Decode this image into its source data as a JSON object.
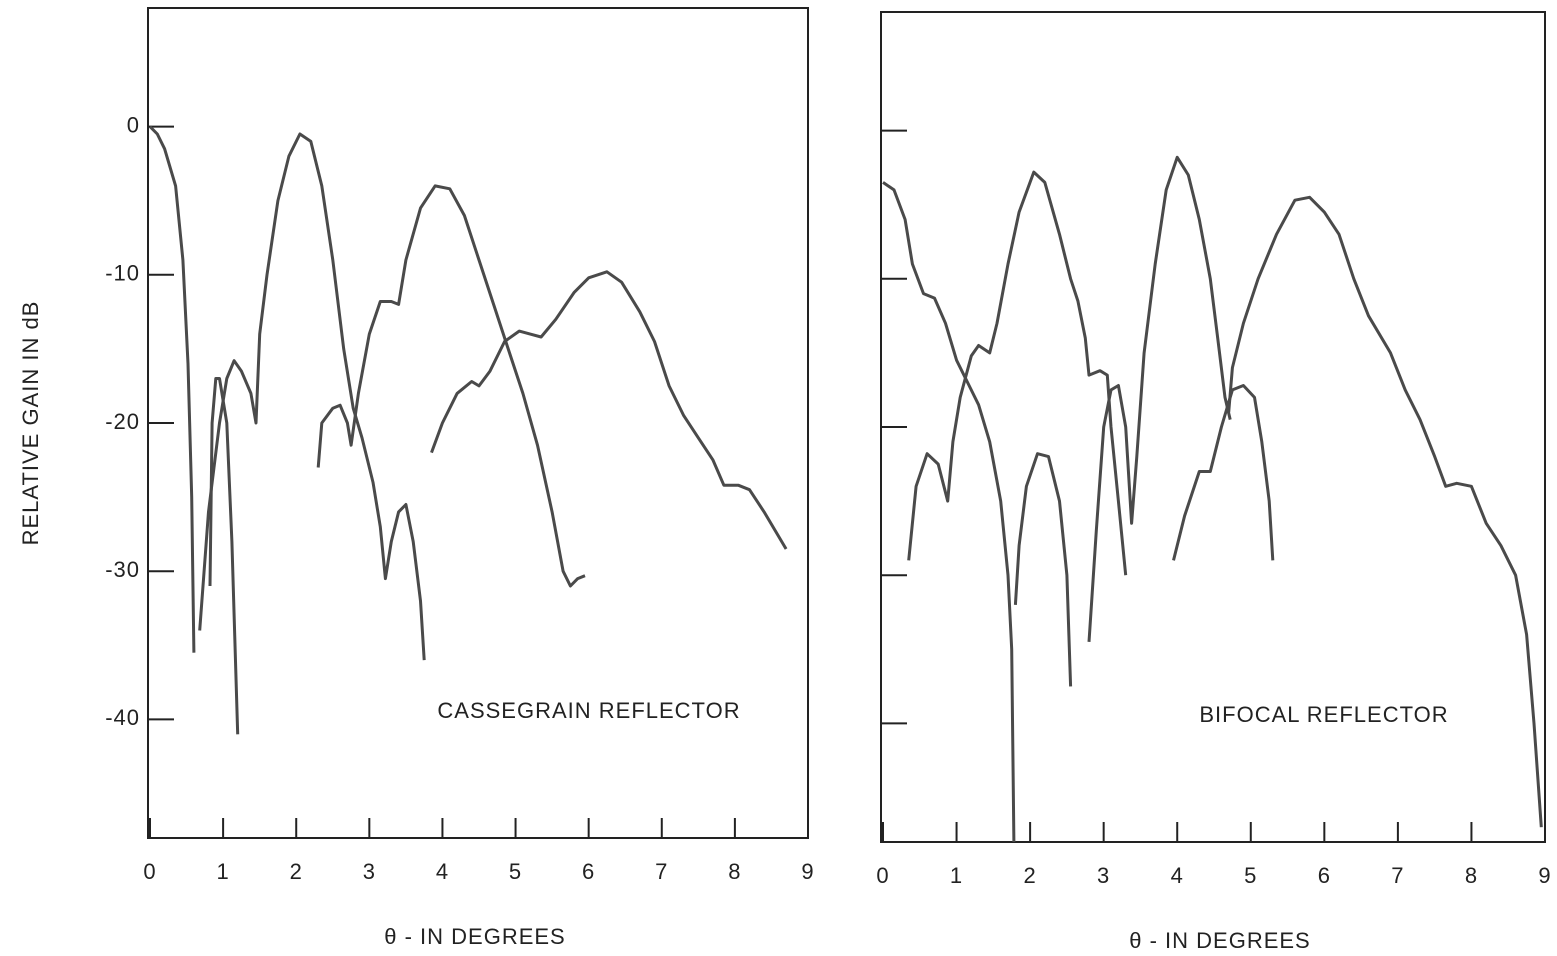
{
  "chart_data": [
    {
      "type": "line",
      "ylabel": "RELATIVE GAIN IN dB",
      "xlabel": "θ - IN DEGREES",
      "annotation": "CASSEGRAIN REFLECTOR",
      "color": "#4a4a4a",
      "xlim": [
        0,
        9
      ],
      "ylim": [
        -48,
        8
      ],
      "xticks": [
        0,
        1,
        2,
        3,
        4,
        5,
        6,
        7,
        8,
        9
      ],
      "yticks": [
        0,
        -10,
        -20,
        -30,
        -40
      ],
      "ytick_labels": true,
      "series": [
        {
          "x": [
            0,
            0.1,
            0.2,
            0.35,
            0.45,
            0.52,
            0.57,
            0.6
          ],
          "values": [
            0,
            -0.5,
            -1.5,
            -4,
            -9,
            -16,
            -25,
            -35.5
          ]
        },
        {
          "x": [
            0.82,
            0.85,
            0.9,
            0.95,
            1.05,
            1.12,
            1.2
          ],
          "values": [
            -31,
            -20,
            -17,
            -17,
            -20,
            -28,
            -41
          ]
        },
        {
          "x": [
            0.68,
            0.8,
            0.95,
            1.05,
            1.15,
            1.25,
            1.38,
            1.45,
            1.5,
            1.6,
            1.75,
            1.9,
            2.05,
            2.2,
            2.35,
            2.5,
            2.65,
            2.78,
            2.9,
            3.05,
            3.15,
            3.22,
            3.3,
            3.4,
            3.5,
            3.6,
            3.7,
            3.75
          ],
          "values": [
            -34,
            -26,
            -20,
            -17,
            -15.8,
            -16.5,
            -18,
            -20,
            -14,
            -10,
            -5,
            -2,
            -0.5,
            -1,
            -4,
            -9,
            -15,
            -19,
            -21,
            -24,
            -27,
            -30.5,
            -28,
            -26,
            -25.5,
            -28,
            -32,
            -36
          ]
        },
        {
          "x": [
            2.3,
            2.35,
            2.5,
            2.6,
            2.7,
            2.75,
            2.85,
            3,
            3.15,
            3.3,
            3.4,
            3.5,
            3.7,
            3.9,
            4.1,
            4.3,
            4.5,
            4.7,
            4.9,
            5.1,
            5.3,
            5.5,
            5.65,
            5.75,
            5.85,
            5.95
          ],
          "values": [
            -23,
            -20,
            -19,
            -18.8,
            -20,
            -21.5,
            -18,
            -14,
            -11.8,
            -11.8,
            -12,
            -9,
            -5.5,
            -4,
            -4.2,
            -6,
            -9,
            -12,
            -15,
            -18,
            -21.5,
            -26,
            -30,
            -31,
            -30.5,
            -30.3
          ]
        },
        {
          "x": [
            3.85,
            4,
            4.2,
            4.4,
            4.5,
            4.65,
            4.85,
            5.05,
            5.2,
            5.35,
            5.55,
            5.8,
            6,
            6.25,
            6.45,
            6.7,
            6.9,
            7.1,
            7.3,
            7.5,
            7.7,
            7.85,
            8.05,
            8.2,
            8.4,
            8.7
          ],
          "values": [
            -22,
            -20,
            -18,
            -17.2,
            -17.5,
            -16.5,
            -14.5,
            -13.8,
            -14,
            -14.2,
            -13,
            -11.2,
            -10.2,
            -9.8,
            -10.5,
            -12.5,
            -14.5,
            -17.5,
            -19.5,
            -21,
            -22.5,
            -24.2,
            -24.2,
            -24.5,
            -26,
            -28.5
          ]
        }
      ]
    },
    {
      "type": "line",
      "xlabel": "θ - IN DEGREES",
      "annotation": "BIFOCAL REFLECTOR",
      "color": "#4a4a4a",
      "xlim": [
        0,
        9
      ],
      "ylim": [
        -48,
        8
      ],
      "xticks": [
        0,
        1,
        2,
        3,
        4,
        5,
        6,
        7,
        8,
        9
      ],
      "yticks": [
        0,
        -10,
        -20,
        -30,
        -40
      ],
      "ytick_labels": false,
      "series": [
        {
          "x": [
            0,
            0.15,
            0.3,
            0.4,
            0.55,
            0.7,
            0.85,
            1,
            1.15,
            1.3,
            1.45,
            1.6,
            1.7,
            1.75,
            1.78
          ],
          "values": [
            -3.5,
            -4,
            -6,
            -9,
            -11,
            -11.3,
            -13,
            -15.5,
            -17,
            -18.5,
            -21,
            -25,
            -30,
            -35,
            -48
          ]
        },
        {
          "x": [
            0.35,
            0.45,
            0.6,
            0.75,
            0.88,
            0.95,
            1.05,
            1.2,
            1.3,
            1.45,
            1.55,
            1.7,
            1.85,
            2.05,
            2.2,
            2.4,
            2.55,
            2.65,
            2.75,
            2.8,
            2.95,
            3.05,
            3.1,
            3.2,
            3.3
          ],
          "values": [
            -29,
            -24,
            -21.8,
            -22.5,
            -25,
            -21,
            -18,
            -15.2,
            -14.5,
            -15,
            -13,
            -9,
            -5.5,
            -2.8,
            -3.5,
            -7,
            -10,
            -11.5,
            -14,
            -16.5,
            -16.2,
            -16.5,
            -20,
            -25,
            -30
          ]
        },
        {
          "x": [
            1.8,
            1.85,
            1.95,
            2.1,
            2.25,
            2.4,
            2.5,
            2.55
          ],
          "values": [
            -32,
            -28,
            -24,
            -21.8,
            -22,
            -25,
            -30,
            -37.5
          ]
        },
        {
          "x": [
            2.8,
            2.9,
            3,
            3.1,
            3.2,
            3.3,
            3.38,
            3.45,
            3.55,
            3.7,
            3.85,
            4,
            4.15,
            4.3,
            4.45,
            4.55,
            4.65,
            4.72
          ],
          "values": [
            -34.5,
            -27,
            -20,
            -17.5,
            -17.2,
            -20,
            -26.5,
            -22,
            -15,
            -9,
            -4,
            -1.8,
            -3,
            -6,
            -10,
            -14,
            -18,
            -19.5
          ]
        },
        {
          "x": [
            3.95,
            4.1,
            4.3,
            4.45,
            4.6,
            4.75,
            4.9,
            5.05,
            5.15,
            5.25,
            5.3
          ],
          "values": [
            -29,
            -26,
            -23,
            -23,
            -20,
            -17.5,
            -17.2,
            -18,
            -21,
            -25,
            -29
          ]
        },
        {
          "x": [
            4.7,
            4.75,
            4.9,
            5.1,
            5.35,
            5.6,
            5.8,
            6,
            6.2,
            6.4,
            6.6,
            6.9,
            7.1,
            7.3,
            7.5,
            7.65,
            7.8,
            8,
            8.2,
            8.4,
            8.6,
            8.75,
            8.85,
            8.95
          ],
          "values": [
            -19,
            -16,
            -13,
            -10,
            -7,
            -4.7,
            -4.5,
            -5.5,
            -7,
            -10,
            -12.5,
            -15,
            -17.5,
            -19.5,
            -22,
            -24,
            -23.8,
            -24,
            -26.5,
            -28,
            -30,
            -34,
            -40,
            -47
          ]
        }
      ]
    }
  ]
}
